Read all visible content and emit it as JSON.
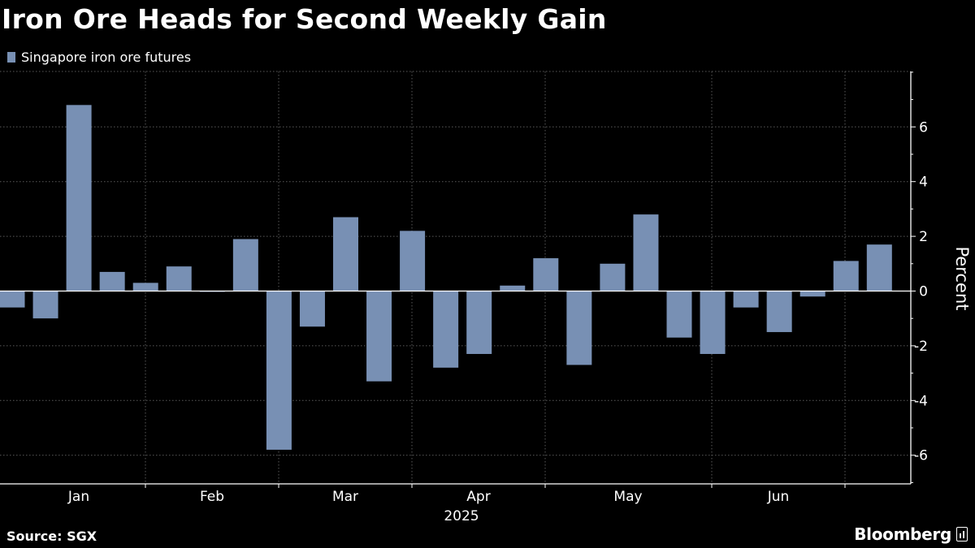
{
  "title": "Iron Ore Heads for Second Weekly Gain",
  "legend": {
    "label": "Singapore iron ore futures",
    "color": "#7890b4"
  },
  "source": "Source: SGX",
  "brand": "Bloomberg",
  "chart_data": {
    "type": "bar",
    "series": [
      {
        "name": "Singapore iron ore futures",
        "values": [
          -0.6,
          -1.0,
          6.8,
          0.7,
          0.3,
          0.9,
          0.0,
          1.9,
          -5.8,
          -1.3,
          2.7,
          -3.3,
          2.2,
          -2.8,
          -2.3,
          0.2,
          1.2,
          -2.7,
          1.0,
          2.8,
          -1.7,
          -2.3,
          -0.6,
          -1.5,
          -0.2,
          1.1,
          1.7
        ]
      }
    ],
    "x_labels": [
      "Jan",
      "Feb",
      "Mar",
      "Apr",
      "May",
      "Jun"
    ],
    "x_sublabel": "2025",
    "ylabel": "Percent",
    "ylim": [
      -7,
      8
    ],
    "yticks": [
      6,
      4,
      2,
      0,
      -2,
      -4,
      -6
    ],
    "ytick_labels": [
      "6",
      "4",
      "2",
      "0",
      "-2",
      "-4",
      "-6"
    ]
  }
}
